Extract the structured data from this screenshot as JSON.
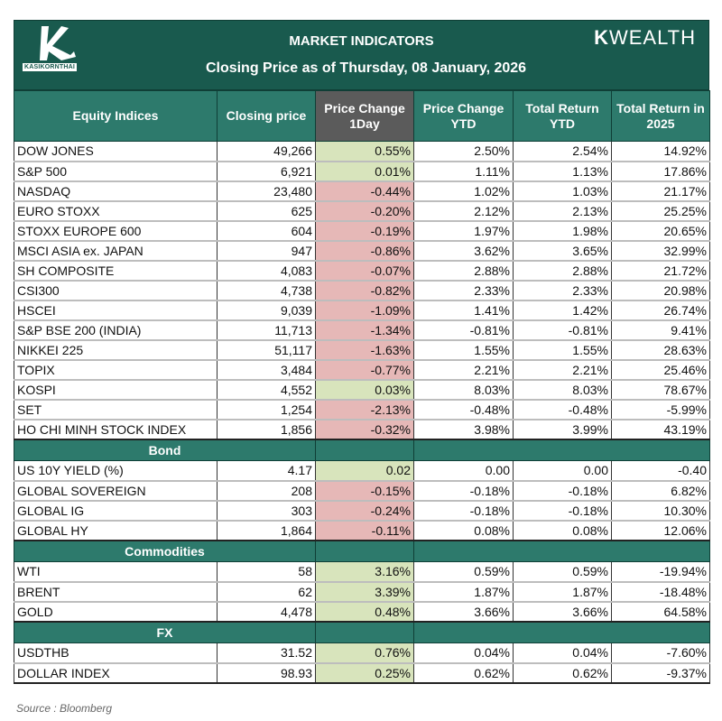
{
  "header": {
    "logo_text": "KASIKORNTHAI",
    "title": "MARKET INDICATORS",
    "subtitle": "Closing Price as of Thursday, 08 January, 2026",
    "brand_k": "K",
    "brand_rest": "WEALTH"
  },
  "columns": [
    "Equity Indices",
    "Closing price",
    "Price Change 1Day",
    "Price Change YTD",
    "Total Return YTD",
    "Total Return in 2025"
  ],
  "colors": {
    "title_bg": "#195a4e",
    "header_bg": "#2d7a6c",
    "gray_header": "#5b5b5b",
    "positive_text": "#2b8a6c",
    "negative_text": "#b0000f",
    "positive_cell": "#d8e4bc",
    "negative_cell": "#e6b8b7"
  },
  "sections": [
    {
      "title": "",
      "rows": [
        [
          "DOW JONES",
          "49,266",
          "0.55%",
          "2.50%",
          "2.54%",
          "14.92%"
        ],
        [
          "S&P 500",
          "6,921",
          "0.01%",
          "1.11%",
          "1.13%",
          "17.86%"
        ],
        [
          "NASDAQ",
          "23,480",
          "-0.44%",
          "1.02%",
          "1.03%",
          "21.17%"
        ],
        [
          "EURO STOXX",
          "625",
          "-0.20%",
          "2.12%",
          "2.13%",
          "25.25%"
        ],
        [
          "STOXX EUROPE 600",
          "604",
          "-0.19%",
          "1.97%",
          "1.98%",
          "20.65%"
        ],
        [
          "MSCI ASIA ex. JAPAN",
          "947",
          "-0.86%",
          "3.62%",
          "3.65%",
          "32.99%"
        ],
        [
          "SH COMPOSITE",
          "4,083",
          "-0.07%",
          "2.88%",
          "2.88%",
          "21.72%"
        ],
        [
          "CSI300",
          "4,738",
          "-0.82%",
          "2.33%",
          "2.33%",
          "20.98%"
        ],
        [
          "HSCEI",
          "9,039",
          "-1.09%",
          "1.41%",
          "1.42%",
          "26.74%"
        ],
        [
          "S&P BSE 200 (INDIA)",
          "11,713",
          "-1.34%",
          "-0.81%",
          "-0.81%",
          "9.41%"
        ],
        [
          "NIKKEI 225",
          "51,117",
          "-1.63%",
          "1.55%",
          "1.55%",
          "28.63%"
        ],
        [
          "TOPIX",
          "3,484",
          "-0.77%",
          "2.21%",
          "2.21%",
          "25.46%"
        ],
        [
          "KOSPI",
          "4,552",
          "0.03%",
          "8.03%",
          "8.03%",
          "78.67%"
        ],
        [
          "SET",
          "1,254",
          "-2.13%",
          "-0.48%",
          "-0.48%",
          "-5.99%"
        ],
        [
          "HO CHI MINH STOCK INDEX",
          "1,856",
          "-0.32%",
          "3.98%",
          "3.99%",
          "43.19%"
        ]
      ]
    },
    {
      "title": "Bond",
      "rows": [
        [
          "US 10Y YIELD (%)",
          "4.17",
          "0.02",
          "0.00",
          "0.00",
          "-0.40"
        ],
        [
          "GLOBAL SOVEREIGN",
          "208",
          "-0.15%",
          "-0.18%",
          "-0.18%",
          "6.82%"
        ],
        [
          "GLOBAL IG",
          "303",
          "-0.24%",
          "-0.18%",
          "-0.18%",
          "10.30%"
        ],
        [
          "GLOBAL HY",
          "1,864",
          "-0.11%",
          "0.08%",
          "0.08%",
          "12.06%"
        ]
      ]
    },
    {
      "title": "Commodities",
      "rows": [
        [
          "WTI",
          "58",
          "3.16%",
          "0.59%",
          "0.59%",
          "-19.94%"
        ],
        [
          "BRENT",
          "62",
          "3.39%",
          "1.87%",
          "1.87%",
          "-18.48%"
        ],
        [
          "GOLD",
          "4,478",
          "0.48%",
          "3.66%",
          "3.66%",
          "64.58%"
        ]
      ]
    },
    {
      "title": "FX",
      "rows": [
        [
          "USDTHB",
          "31.52",
          "0.76%",
          "0.04%",
          "0.04%",
          "-7.60%"
        ],
        [
          "DOLLAR INDEX",
          "98.93",
          "0.25%",
          "0.62%",
          "0.62%",
          "-9.37%"
        ]
      ]
    }
  ],
  "footer": {
    "source": "Source : Bloomberg"
  }
}
